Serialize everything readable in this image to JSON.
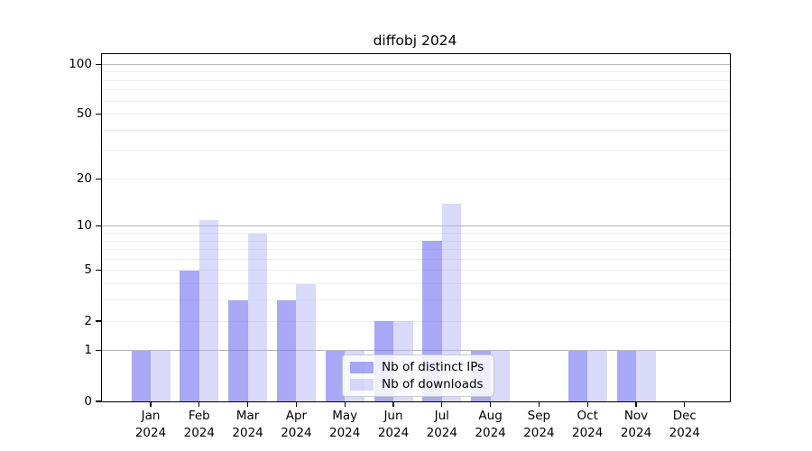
{
  "chart_data": {
    "type": "bar",
    "title": "diffobj 2024",
    "year_label": "2024",
    "categories": [
      "Jan",
      "Feb",
      "Mar",
      "Apr",
      "May",
      "Jun",
      "Jul",
      "Aug",
      "Sep",
      "Oct",
      "Nov",
      "Dec"
    ],
    "series": [
      {
        "name": "Nb of distinct IPs",
        "color": "rgba(110,110,242,0.60)",
        "values": [
          1,
          5,
          3,
          3,
          1,
          2,
          8,
          1,
          0,
          1,
          1,
          0
        ]
      },
      {
        "name": "Nb of downloads",
        "color": "rgba(175,175,245,0.47)",
        "values": [
          1,
          11,
          9,
          4,
          1,
          2,
          14,
          1,
          0,
          1,
          1,
          0
        ]
      }
    ],
    "scale": "log1p",
    "ylim": [
      0,
      115
    ],
    "yticks": [
      100,
      50,
      20,
      10,
      5,
      2,
      1,
      0
    ],
    "grid": {
      "major": [
        1,
        10,
        100
      ],
      "minor": [
        2,
        3,
        4,
        5,
        6,
        7,
        8,
        9,
        20,
        30,
        40,
        50,
        60,
        70,
        80,
        90
      ],
      "major_color": "#b8b8b8",
      "minor_color": "#ededee"
    },
    "legend_position": "lower center-right"
  }
}
